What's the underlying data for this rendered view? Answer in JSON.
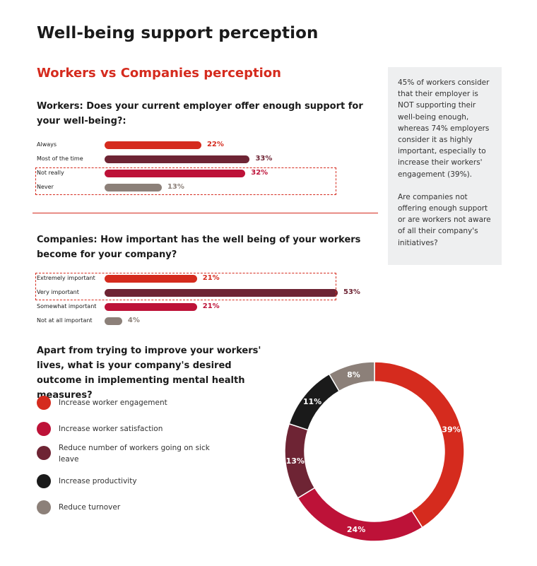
{
  "title": "Well-being support perception",
  "subtitle": "Workers vs Companies perception",
  "sidebox": {
    "p1": "45% of workers consider that their employer is NOT supporting their well-being enough, whereas 74% employers consider it as highly important, especially to increase their workers' engagement (39%).",
    "p2": "Are companies not offering enough support or are workers not aware of all their company's initiatives?"
  },
  "colors": {
    "red": "#d52b1e",
    "crimson": "#bd1238",
    "maroon": "#6e2434",
    "black": "#1a1a1a",
    "grey": "#8c8079"
  },
  "chart_data": [
    {
      "type": "bar",
      "orientation": "horizontal",
      "title": "Workers: Does your current employer offer enough support for your well-being?:",
      "categories": [
        "Always",
        "Most of the time",
        "Not really",
        "Never"
      ],
      "values": [
        22,
        33,
        32,
        13
      ],
      "value_labels": [
        "22%",
        "33%",
        "32%",
        "13%"
      ],
      "colors": [
        "#d52b1e",
        "#6e2434",
        "#bd1238",
        "#8c8079"
      ],
      "highlighted": [
        "Not really",
        "Never"
      ],
      "xlim": [
        0,
        55
      ]
    },
    {
      "type": "bar",
      "orientation": "horizontal",
      "title": "Companies: How important has the well being of your workers become for your company?",
      "categories": [
        "Extremely important",
        "Very important",
        "Somewhat important",
        "Not at all important"
      ],
      "values": [
        21,
        53,
        21,
        4
      ],
      "value_labels": [
        "21%",
        "53%",
        "21%",
        "4%"
      ],
      "colors": [
        "#d52b1e",
        "#6e2434",
        "#bd1238",
        "#8c8079"
      ],
      "highlighted": [
        "Extremely important",
        "Very important"
      ],
      "xlim": [
        0,
        55
      ]
    },
    {
      "type": "pie",
      "donut": true,
      "title": "Apart from trying to improve your workers' lives, what is your company's desired outcome in implementing mental health measures?",
      "categories": [
        "Increase worker engagement",
        "Increase worker satisfaction",
        "Reduce number of workers going on sick leave",
        "Increase productivity",
        "Reduce turnover"
      ],
      "values": [
        39,
        24,
        13,
        11,
        8
      ],
      "value_labels": [
        "39%",
        "24%",
        "13%",
        "11%",
        "8%"
      ],
      "colors": [
        "#d52b1e",
        "#bd1238",
        "#6e2434",
        "#1a1a1a",
        "#8c8079"
      ],
      "legend": "left"
    }
  ]
}
